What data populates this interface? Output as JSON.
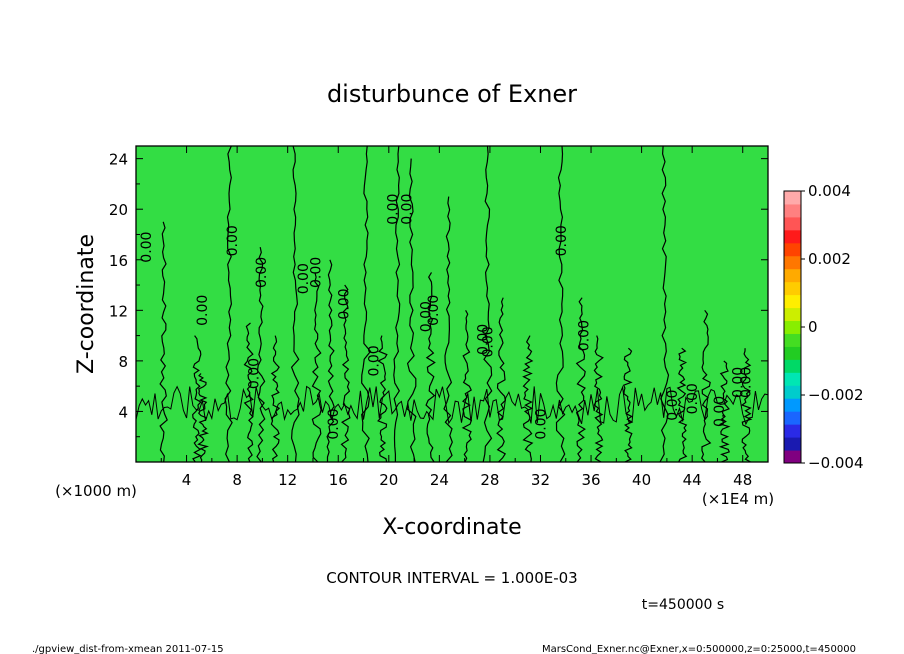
{
  "chart_data": {
    "type": "contour",
    "title": "disturbunce of Exner",
    "xlabel": "X-coordinate",
    "ylabel": "Z-coordinate",
    "x_unit_left": "(×1000 m)",
    "x_unit_right": "(×1E4 m)",
    "xlim": [
      0,
      50
    ],
    "ylim": [
      0,
      25
    ],
    "x_ticks": [
      "4",
      "8",
      "12",
      "16",
      "20",
      "24",
      "28",
      "32",
      "36",
      "40",
      "44",
      "48"
    ],
    "y_ticks": [
      "4",
      "8",
      "12",
      "16",
      "20",
      "24"
    ],
    "contour_interval": "CONTOUR INTERVAL = 1.000E-03",
    "contour_label": "0.00",
    "time_label": "t=450000 s",
    "colorbar": {
      "min": -0.004,
      "max": 0.004,
      "labels": [
        "0.004",
        "0.002",
        "0",
        "−0.002",
        "−0.004"
      ],
      "colors": [
        "#800080",
        "#1a1ab0",
        "#2a2ae6",
        "#1a66ff",
        "#0099ff",
        "#00cccc",
        "#00e6b3",
        "#00d966",
        "#22cc22",
        "#44dd22",
        "#88ee00",
        "#ccee00",
        "#ffee00",
        "#ffcc00",
        "#ffaa00",
        "#ff7700",
        "#ff4400",
        "#ff1a1a",
        "#ff5555",
        "#ff8080",
        "#ffaaaa"
      ]
    },
    "field_color": "#33dd44"
  },
  "footer": {
    "left": "./gpview_dist-from-xmean  2011-07-15",
    "right": "MarsCond_Exner.nc@Exner,x=0:500000,z=0:25000,t=450000"
  }
}
